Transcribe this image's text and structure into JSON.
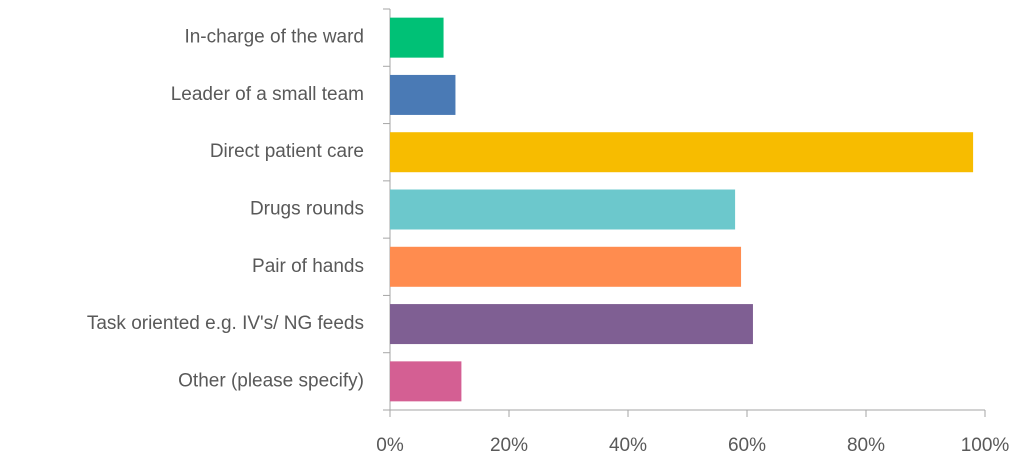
{
  "chart_data": {
    "type": "bar",
    "orientation": "horizontal",
    "categories": [
      "In-charge of the ward",
      "Leader of a small team",
      "Direct patient care",
      "Drugs rounds",
      "Pair of hands",
      "Task oriented e.g. IV's/ NG feeds",
      "Other (please specify)"
    ],
    "values": [
      9,
      11,
      98,
      58,
      59,
      61,
      12
    ],
    "colors": [
      "#00c176",
      "#4a7ab5",
      "#f7bc00",
      "#6cc8cc",
      "#ff8c4f",
      "#7f5f93",
      "#d45f93"
    ],
    "xlim": [
      0,
      100
    ],
    "xticks": [
      {
        "value": 0,
        "label": "0%"
      },
      {
        "value": 20,
        "label": "20%"
      },
      {
        "value": 40,
        "label": "40%"
      },
      {
        "value": 60,
        "label": "60%"
      },
      {
        "value": 80,
        "label": "80%"
      },
      {
        "value": 100,
        "label": "100%"
      }
    ],
    "grid": false
  }
}
